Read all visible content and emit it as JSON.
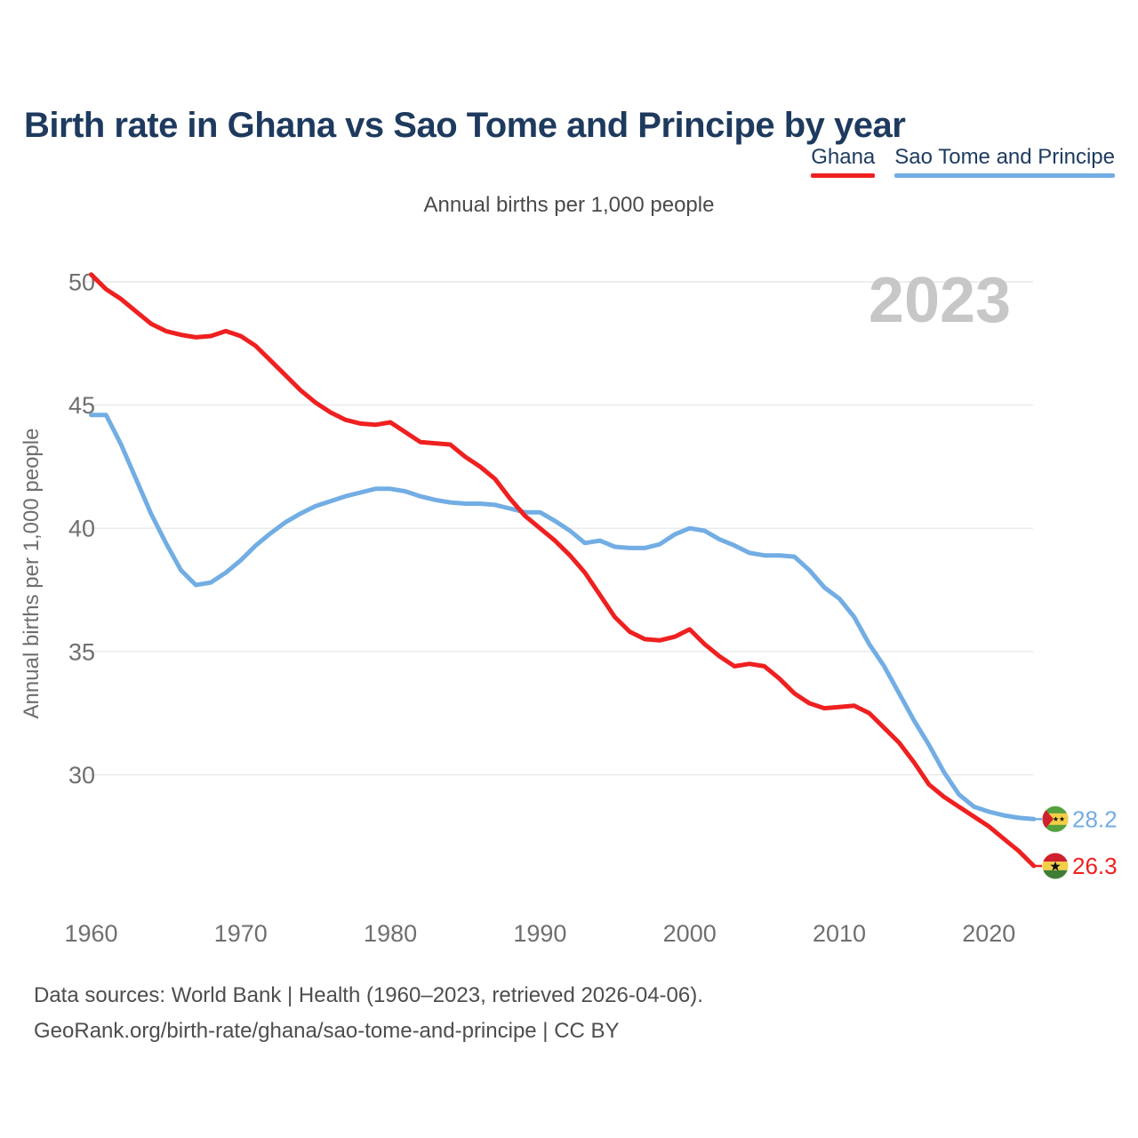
{
  "title": "Birth rate in Ghana vs Sao Tome and Principe by year",
  "subtitle": "Annual births per 1,000 people",
  "watermark": "2023",
  "y_axis_title": "Annual births per 1,000 people",
  "legend": {
    "items": [
      {
        "label": "Ghana",
        "color": "#ef2020"
      },
      {
        "label": "Sao Tome and Principe",
        "color": "#72ade4"
      }
    ]
  },
  "end_labels": [
    {
      "series": "Sao Tome and Principe",
      "value": "28.2",
      "color": "#72ade4",
      "flag": "sao-tome-flag"
    },
    {
      "series": "Ghana",
      "value": "26.3",
      "color": "#ef2020",
      "flag": "ghana-flag"
    }
  ],
  "footer": {
    "line1": "Data sources: World Bank | Health (1960–2023, retrieved 2026-04-06).",
    "line2": "GeoRank.org/birth-rate/ghana/sao-tome-and-principe | CC BY"
  },
  "chart_data": {
    "type": "line",
    "title": "Birth rate in Ghana vs Sao Tome and Principe by year",
    "subtitle": "Annual births per 1,000 people",
    "xlabel": "",
    "ylabel": "Annual births per 1,000 people",
    "xticks": [
      1960,
      1970,
      1980,
      1990,
      2000,
      2010,
      2020
    ],
    "yticks": [
      30,
      35,
      40,
      45,
      50
    ],
    "ylim": [
      26,
      51
    ],
    "xlim": [
      1960,
      2023
    ],
    "grid": "horizontal",
    "legend_position": "top-right",
    "x": [
      1960,
      1961,
      1962,
      1963,
      1964,
      1965,
      1966,
      1967,
      1968,
      1969,
      1970,
      1971,
      1972,
      1973,
      1974,
      1975,
      1976,
      1977,
      1978,
      1979,
      1980,
      1981,
      1982,
      1983,
      1984,
      1985,
      1986,
      1987,
      1988,
      1989,
      1990,
      1991,
      1992,
      1993,
      1994,
      1995,
      1996,
      1997,
      1998,
      1999,
      2000,
      2001,
      2002,
      2003,
      2004,
      2005,
      2006,
      2007,
      2008,
      2009,
      2010,
      2011,
      2012,
      2013,
      2014,
      2015,
      2016,
      2017,
      2018,
      2019,
      2020,
      2021,
      2022,
      2023
    ],
    "series": [
      {
        "name": "Ghana",
        "color": "#ef2020",
        "values": [
          50.3,
          49.7,
          49.3,
          48.8,
          48.3,
          48.0,
          47.85,
          47.75,
          47.8,
          48.0,
          47.8,
          47.4,
          46.8,
          46.2,
          45.6,
          45.1,
          44.7,
          44.4,
          44.25,
          44.2,
          44.3,
          43.9,
          43.5,
          43.45,
          43.4,
          42.9,
          42.5,
          42.0,
          41.2,
          40.5,
          40.0,
          39.5,
          38.9,
          38.2,
          37.3,
          36.4,
          35.8,
          35.5,
          35.45,
          35.6,
          35.9,
          35.3,
          34.8,
          34.4,
          34.5,
          34.4,
          33.9,
          33.3,
          32.9,
          32.7,
          32.75,
          32.8,
          32.5,
          31.9,
          31.3,
          30.5,
          29.6,
          29.1,
          28.7,
          28.3,
          27.9,
          27.4,
          26.9,
          26.3
        ]
      },
      {
        "name": "Sao Tome and Principe",
        "color": "#72ade4",
        "values": [
          44.6,
          44.6,
          43.4,
          42.0,
          40.6,
          39.4,
          38.3,
          37.7,
          37.8,
          38.2,
          38.7,
          39.3,
          39.8,
          40.25,
          40.6,
          40.9,
          41.1,
          41.3,
          41.45,
          41.6,
          41.6,
          41.5,
          41.3,
          41.15,
          41.05,
          41.0,
          41.0,
          40.95,
          40.8,
          40.65,
          40.65,
          40.3,
          39.9,
          39.4,
          39.5,
          39.25,
          39.2,
          39.2,
          39.35,
          39.75,
          40.0,
          39.9,
          39.55,
          39.3,
          39.0,
          38.9,
          38.9,
          38.85,
          38.3,
          37.6,
          37.15,
          36.4,
          35.3,
          34.4,
          33.3,
          32.2,
          31.2,
          30.1,
          29.2,
          28.7,
          28.5,
          28.35,
          28.25,
          28.2
        ]
      }
    ]
  }
}
